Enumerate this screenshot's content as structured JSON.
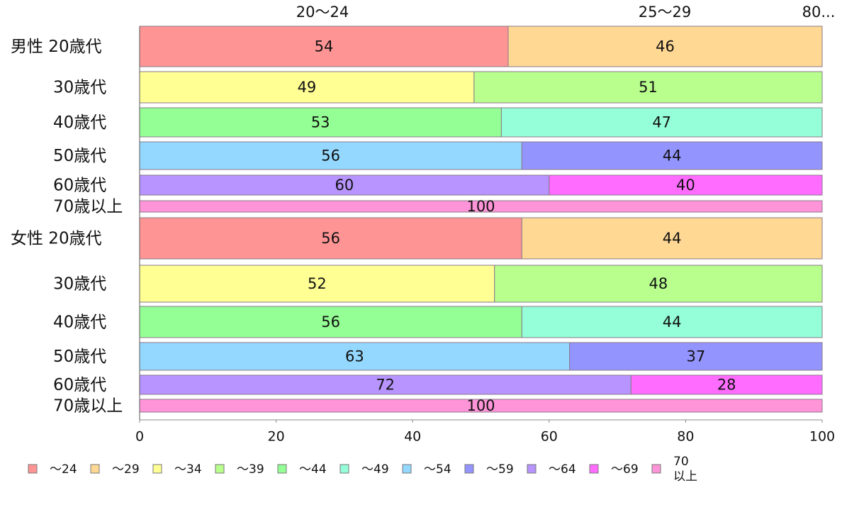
{
  "chart_data": {
    "type": "bar",
    "orientation": "horizontal",
    "stacked": true,
    "percent": true,
    "xlim": [
      0,
      100
    ],
    "x_ticks": [
      0,
      20,
      40,
      60,
      80,
      100
    ],
    "top_labels": [
      "20〜24",
      "25〜29",
      "80..."
    ],
    "groups": [
      {
        "group_label": "男性",
        "rows": [
          {
            "label": "20歳代",
            "values": [
              54,
              46
            ]
          },
          {
            "label": "30歳代",
            "values": [
              49,
              51
            ]
          },
          {
            "label": "40歳代",
            "values": [
              53,
              47
            ]
          },
          {
            "label": "50歳代",
            "values": [
              56,
              44
            ]
          },
          {
            "label": "60歳代",
            "values": [
              60,
              40
            ]
          },
          {
            "label": "70歳以上",
            "values": [
              100
            ]
          }
        ]
      },
      {
        "group_label": "女性",
        "rows": [
          {
            "label": "20歳代",
            "values": [
              56,
              44
            ]
          },
          {
            "label": "30歳代",
            "values": [
              52,
              48
            ]
          },
          {
            "label": "40歳代",
            "values": [
              56,
              44
            ]
          },
          {
            "label": "50歳代",
            "values": [
              63,
              37
            ]
          },
          {
            "label": "60歳代",
            "values": [
              72,
              28
            ]
          },
          {
            "label": "70歳以上",
            "values": [
              100
            ]
          }
        ]
      }
    ],
    "legend": [
      {
        "label": "〜24",
        "color": "#ff9494"
      },
      {
        "label": "〜29",
        "color": "#ffd894"
      },
      {
        "label": "〜34",
        "color": "#ffff94"
      },
      {
        "label": "〜39",
        "color": "#b8ff8e"
      },
      {
        "label": "〜44",
        "color": "#94ff94"
      },
      {
        "label": "〜49",
        "color": "#94ffd8"
      },
      {
        "label": "〜54",
        "color": "#94d8ff"
      },
      {
        "label": "〜59",
        "color": "#9494ff"
      },
      {
        "label": "〜64",
        "color": "#b794ff"
      },
      {
        "label": "〜69",
        "color": "#ff6cff"
      },
      {
        "label": "70 以上",
        "color": "#ff94d8"
      }
    ],
    "row_colors": [
      [
        "#ff9494",
        "#ffd894"
      ],
      [
        "#ffff94",
        "#b8ff8e"
      ],
      [
        "#94ff94",
        "#94ffd8"
      ],
      [
        "#94d8ff",
        "#9494ff"
      ],
      [
        "#b794ff",
        "#ff6cff"
      ],
      [
        "#ff94d8"
      ]
    ]
  }
}
